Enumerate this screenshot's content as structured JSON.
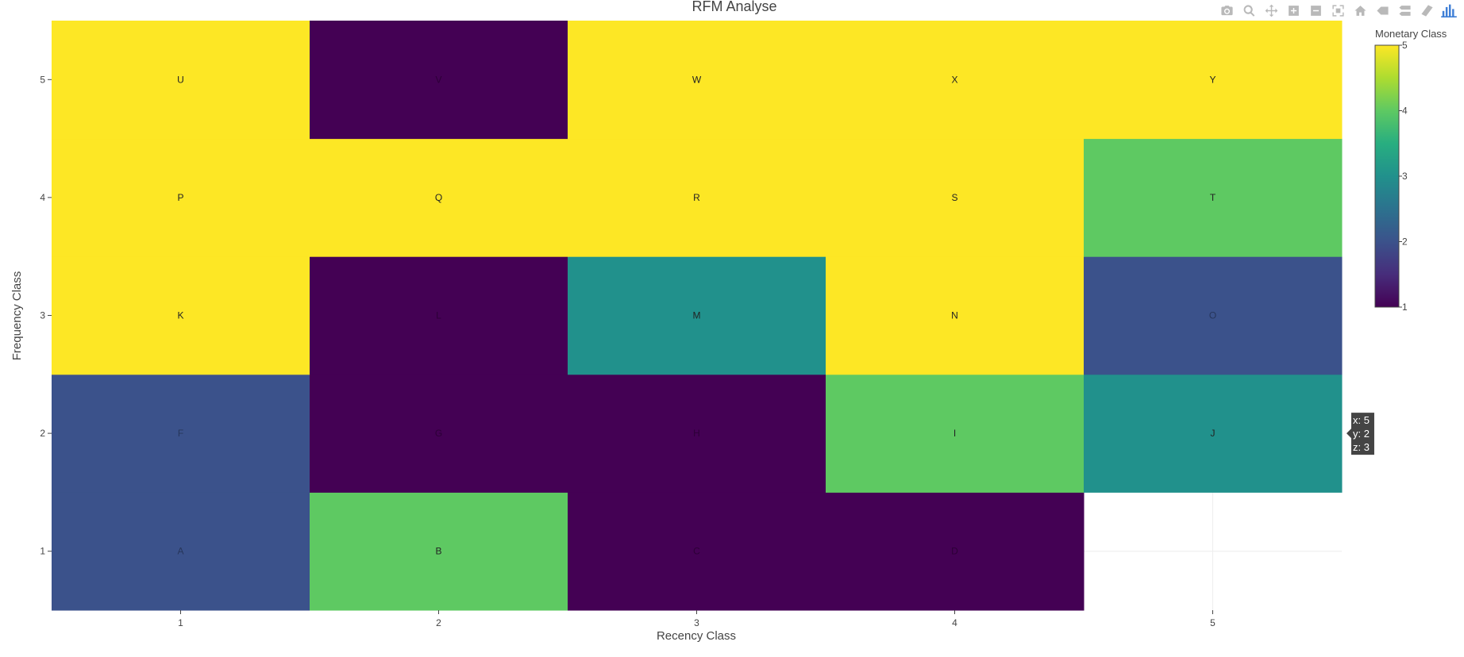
{
  "modebar": {
    "icons": [
      "camera-icon",
      "zoom-icon",
      "pan-icon",
      "zoom-in-icon",
      "zoom-out-icon",
      "autoscale-icon",
      "home-icon",
      "hover-closest-icon",
      "hover-compare-icon",
      "spike-lines-icon",
      "plotly-logo-icon"
    ]
  },
  "chart_data": {
    "type": "heatmap",
    "title": "RFM Analyse",
    "xlabel": "Recency Class",
    "ylabel": "Frequency Class",
    "x": [
      1,
      2,
      3,
      4,
      5
    ],
    "y": [
      1,
      2,
      3,
      4,
      5
    ],
    "x_tick_labels": [
      "1",
      "2",
      "3",
      "4",
      "5"
    ],
    "y_tick_labels": [
      "1",
      "2",
      "3",
      "4",
      "5"
    ],
    "z": [
      [
        2,
        4,
        1,
        1,
        null
      ],
      [
        2,
        1,
        1,
        4,
        3
      ],
      [
        5,
        1,
        3,
        5,
        2
      ],
      [
        5,
        5,
        5,
        5,
        4
      ],
      [
        5,
        1,
        5,
        5,
        5
      ]
    ],
    "text": [
      [
        "A",
        "B",
        "C",
        "D",
        ""
      ],
      [
        "F",
        "G",
        "H",
        "I",
        "J"
      ],
      [
        "K",
        "L",
        "M",
        "N",
        "O"
      ],
      [
        "P",
        "Q",
        "R",
        "S",
        "T"
      ],
      [
        "U",
        "V",
        "W",
        "X",
        "Y"
      ]
    ],
    "colorscale": "Viridis",
    "colorbar": {
      "title": "Monetary Class",
      "range": [
        1,
        5
      ],
      "ticks": [
        "1",
        "2",
        "3",
        "4",
        "5"
      ]
    },
    "hover": {
      "x_label": "x: 5",
      "y_label": "y: 2",
      "z_label": "z: 3"
    }
  }
}
